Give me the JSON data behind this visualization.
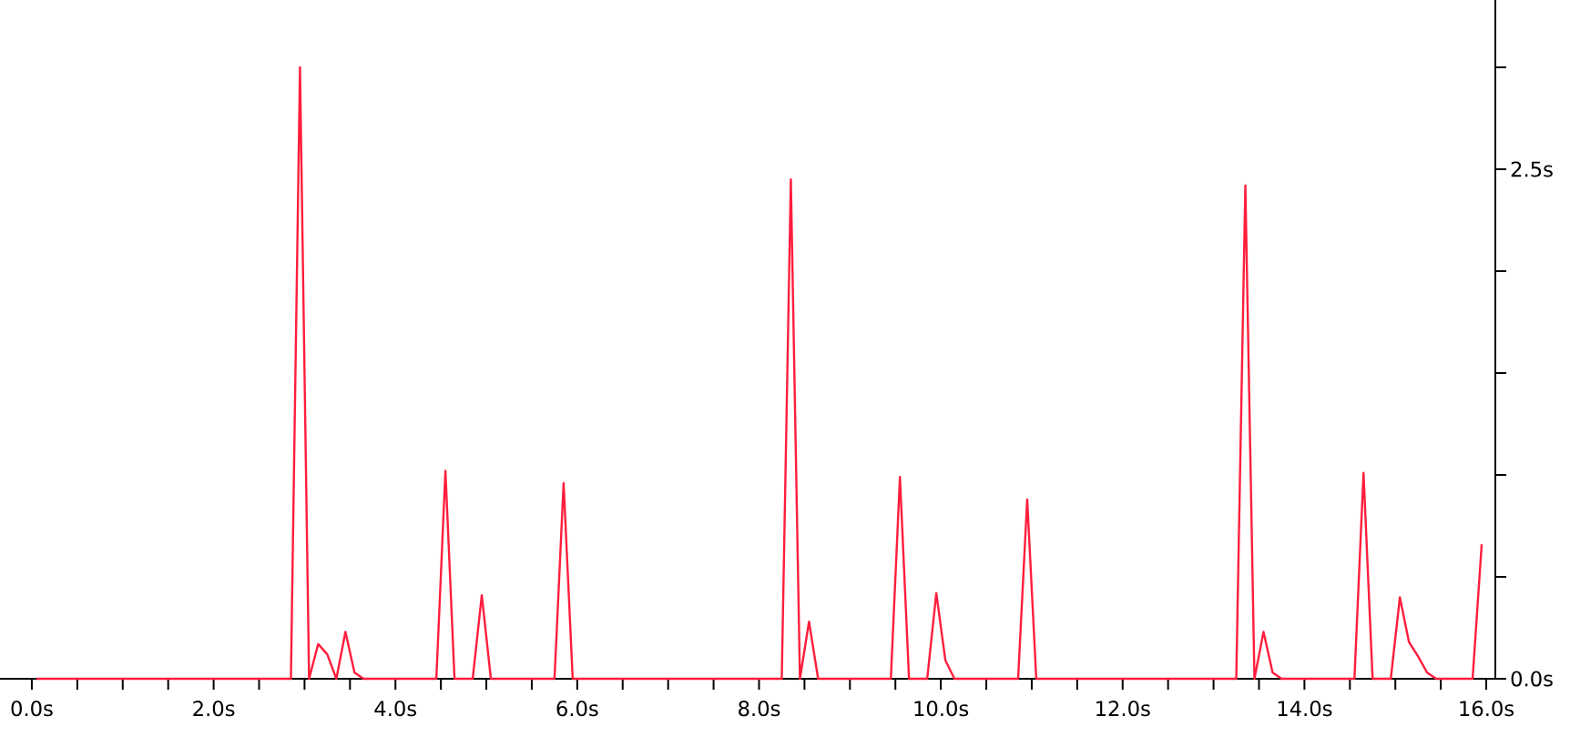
{
  "chart_data": {
    "type": "line",
    "color": "#ff1e3c",
    "x": [
      0.05,
      2.85,
      2.95,
      3.05,
      3.15,
      3.25,
      3.35,
      3.45,
      3.55,
      3.65,
      4.45,
      4.55,
      4.65,
      4.85,
      4.95,
      5.05,
      5.75,
      5.85,
      5.95,
      8.25,
      8.35,
      8.45,
      8.55,
      8.65,
      9.45,
      9.55,
      9.65,
      9.85,
      9.95,
      10.05,
      10.15,
      10.85,
      10.95,
      11.05,
      13.25,
      13.35,
      13.45,
      13.55,
      13.65,
      13.75,
      14.55,
      14.65,
      14.75,
      14.95,
      15.05,
      15.15,
      15.25,
      15.35,
      15.45,
      15.85,
      15.95
    ],
    "values": [
      0,
      0,
      3.0,
      0,
      0.17,
      0.12,
      0,
      0.23,
      0.03,
      0,
      0,
      1.02,
      0,
      0,
      0.41,
      0,
      0,
      0.96,
      0,
      0,
      2.45,
      0,
      0.28,
      0,
      0,
      0.99,
      0,
      0,
      0.42,
      0.09,
      0,
      0,
      0.88,
      0,
      0,
      2.42,
      0,
      0.23,
      0.03,
      0,
      0,
      1.01,
      0,
      0,
      0.4,
      0.18,
      0.11,
      0.03,
      0,
      0,
      0.66
    ],
    "xlim": [
      -0.35,
      16.1
    ],
    "ylim": [
      0,
      3.33
    ],
    "xticks": [
      {
        "value": 0,
        "label": "0.0s"
      },
      {
        "value": 0.5,
        "label": null
      },
      {
        "value": 1,
        "label": null
      },
      {
        "value": 1.5,
        "label": null
      },
      {
        "value": 2,
        "label": "2.0s"
      },
      {
        "value": 2.5,
        "label": null
      },
      {
        "value": 3,
        "label": null
      },
      {
        "value": 3.5,
        "label": null
      },
      {
        "value": 4,
        "label": "4.0s"
      },
      {
        "value": 4.5,
        "label": null
      },
      {
        "value": 5,
        "label": null
      },
      {
        "value": 5.5,
        "label": null
      },
      {
        "value": 6,
        "label": "6.0s"
      },
      {
        "value": 6.5,
        "label": null
      },
      {
        "value": 7,
        "label": null
      },
      {
        "value": 7.5,
        "label": null
      },
      {
        "value": 8,
        "label": "8.0s"
      },
      {
        "value": 8.5,
        "label": null
      },
      {
        "value": 9,
        "label": null
      },
      {
        "value": 9.5,
        "label": null
      },
      {
        "value": 10,
        "label": "10.0s"
      },
      {
        "value": 10.5,
        "label": null
      },
      {
        "value": 11,
        "label": null
      },
      {
        "value": 11.5,
        "label": null
      },
      {
        "value": 12,
        "label": "12.0s"
      },
      {
        "value": 12.5,
        "label": null
      },
      {
        "value": 13,
        "label": null
      },
      {
        "value": 13.5,
        "label": null
      },
      {
        "value": 14,
        "label": "14.0s"
      },
      {
        "value": 14.5,
        "label": null
      },
      {
        "value": 15,
        "label": null
      },
      {
        "value": 15.5,
        "label": null
      },
      {
        "value": 16,
        "label": "16.0s"
      }
    ],
    "yticks": [
      {
        "value": 0,
        "label": "0.0s"
      },
      {
        "value": 0.5,
        "label": null
      },
      {
        "value": 1,
        "label": null
      },
      {
        "value": 1.5,
        "label": null
      },
      {
        "value": 2,
        "label": null
      },
      {
        "value": 2.5,
        "label": "2.5s"
      },
      {
        "value": 3,
        "label": null
      }
    ]
  }
}
